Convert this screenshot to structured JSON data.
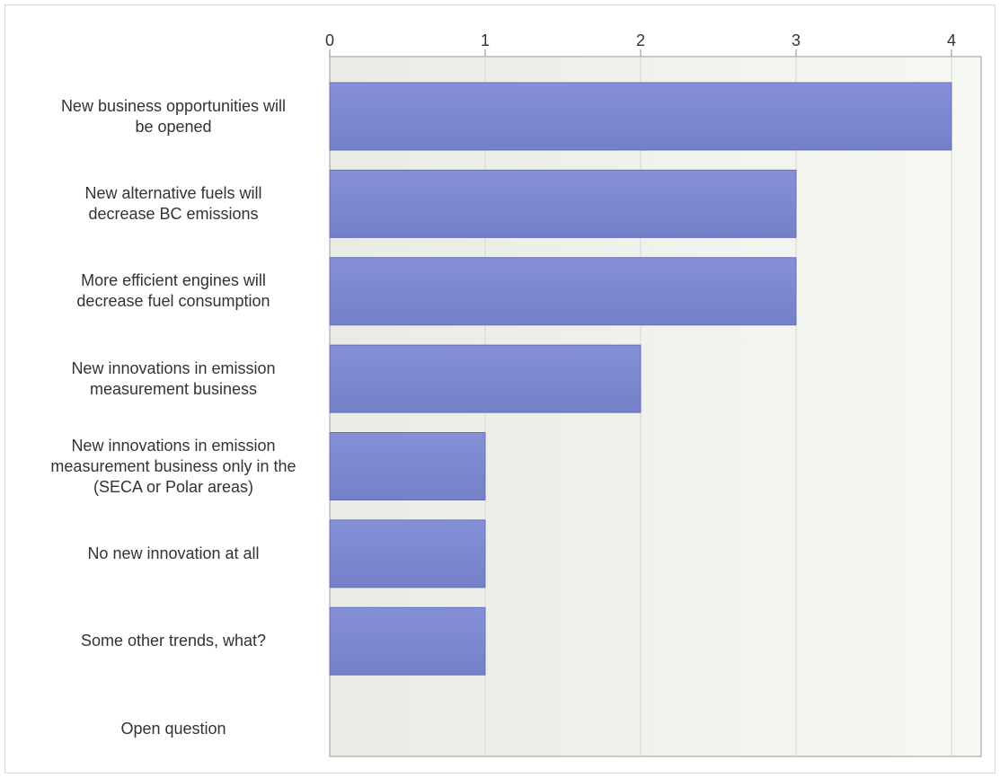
{
  "chart_data": {
    "type": "bar",
    "orientation": "horizontal",
    "categories": [
      "New business opportunities will be opened",
      "New alternative fuels will decrease BC emissions",
      "More efficient engines will decrease fuel consumption",
      "New innovations in emission measurement business",
      "New innovations in emission measurement business only in the (SECA or Polar areas)",
      "No new innovation at all",
      "Some other trends, what?",
      "Open question"
    ],
    "label_lines": [
      [
        "New business opportunities will",
        "be opened"
      ],
      [
        "New alternative fuels will",
        "decrease BC emissions"
      ],
      [
        "More efficient engines will",
        "decrease fuel consumption"
      ],
      [
        "New innovations in emission",
        "measurement business"
      ],
      [
        "New innovations in emission",
        "measurement business only in the",
        "(SECA or Polar areas)"
      ],
      [
        "No new innovation at all"
      ],
      [
        "Some other trends, what?"
      ],
      [
        "Open question"
      ]
    ],
    "values": [
      4,
      3,
      3,
      2,
      1,
      1,
      1,
      0
    ],
    "x_ticks": [
      "0",
      "1",
      "2",
      "3",
      "4"
    ],
    "xlim": [
      0,
      4.05
    ],
    "grid": true,
    "axis_position": "top",
    "bar_color": "#7d88d4",
    "plot_bg": "#eef0ea"
  }
}
